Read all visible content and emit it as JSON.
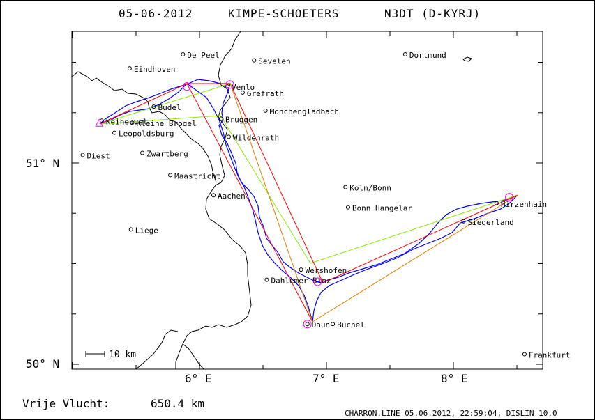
{
  "title": {
    "date": "05-06-2012",
    "pilots": "KIMPE-SCHOETERS",
    "callsign": "N3DT (D-KYRJ)"
  },
  "axes": {
    "lon_labels": [
      "6° E",
      "7° E",
      "8° E"
    ],
    "lat_labels": [
      "51° N",
      "50° N"
    ]
  },
  "scale_bar": "10 km",
  "distance": {
    "label": "Vrije Vlucht:",
    "value": "650.4 km"
  },
  "footer": "CHARRON.LINE 05.06.2012, 22:59:04, DISLIN 10.0",
  "places": [
    {
      "name": "De Peel",
      "lon": 5.87,
      "lat": 51.54
    },
    {
      "name": "Sevelen",
      "lon": 6.43,
      "lat": 51.51
    },
    {
      "name": "Dortmund",
      "lon": 7.62,
      "lat": 51.54
    },
    {
      "name": "Eindhoven",
      "lon": 5.45,
      "lat": 51.47
    },
    {
      "name": "Venlo",
      "lon": 6.22,
      "lat": 51.38
    },
    {
      "name": "Grefrath",
      "lon": 6.34,
      "lat": 51.35
    },
    {
      "name": "Budel",
      "lon": 5.64,
      "lat": 51.28
    },
    {
      "name": "Monchengladbach",
      "lon": 6.52,
      "lat": 51.26
    },
    {
      "name": "Bruggen",
      "lon": 6.17,
      "lat": 51.22
    },
    {
      "name": "Keiheuvel",
      "lon": 5.23,
      "lat": 51.21
    },
    {
      "name": "Kleine Brogel",
      "lon": 5.47,
      "lat": 51.2
    },
    {
      "name": "Leopoldsburg",
      "lon": 5.33,
      "lat": 51.15
    },
    {
      "name": "Wildenrath",
      "lon": 6.23,
      "lat": 51.13
    },
    {
      "name": "Diest",
      "lon": 5.08,
      "lat": 51.04
    },
    {
      "name": "Zwartberg",
      "lon": 5.55,
      "lat": 51.05
    },
    {
      "name": "Maastricht",
      "lon": 5.77,
      "lat": 50.94
    },
    {
      "name": "Koln/Bonn",
      "lon": 7.15,
      "lat": 50.88
    },
    {
      "name": "Aachen",
      "lon": 6.11,
      "lat": 50.84
    },
    {
      "name": "Bonn Hangelar",
      "lon": 7.17,
      "lat": 50.78
    },
    {
      "name": "Hirzenhain",
      "lon": 8.34,
      "lat": 50.8
    },
    {
      "name": "Siegerland",
      "lon": 8.08,
      "lat": 50.71
    },
    {
      "name": "Liege",
      "lon": 5.46,
      "lat": 50.67
    },
    {
      "name": "Wershofen",
      "lon": 6.8,
      "lat": 50.47
    },
    {
      "name": "Dahlemer-Binz",
      "lon": 6.53,
      "lat": 50.42
    },
    {
      "name": "Daun",
      "lon": 6.85,
      "lat": 50.2
    },
    {
      "name": "Buchel",
      "lon": 7.05,
      "lat": 50.2
    },
    {
      "name": "Frankfurt",
      "lon": 8.56,
      "lat": 50.05
    }
  ],
  "turnpoints": [
    {
      "lon": 5.21,
      "lat": 51.2
    },
    {
      "lon": 5.9,
      "lat": 51.38
    },
    {
      "lon": 6.24,
      "lat": 51.39
    },
    {
      "lon": 6.93,
      "lat": 50.41
    },
    {
      "lon": 6.85,
      "lat": 50.2
    },
    {
      "lon": 8.44,
      "lat": 50.83
    }
  ],
  "colors": {
    "track": "#0000ff",
    "route_red": "#ff0000",
    "route_green": "#88ee00",
    "route_orange": "#e08000",
    "turnpoint": "#ff00ff",
    "border": "#000000"
  }
}
